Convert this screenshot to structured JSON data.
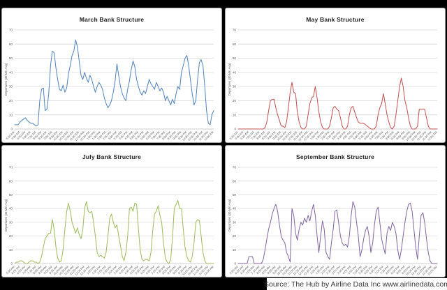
{
  "source": {
    "label": "Source: The Hub by Airline Data Inc www.airlinedata.com"
  },
  "axis": {
    "ylabel": "Departures (30 Min Avg)",
    "yticks": [
      0,
      10,
      20,
      30,
      40,
      50,
      60,
      70
    ],
    "ylim": [
      0,
      70
    ],
    "x_interval_minutes": 10,
    "grid": true,
    "legend": "none",
    "x_labels": [
      "5:30 AM",
      "6:00 AM",
      "6:30 AM",
      "7:00 AM",
      "7:30 AM",
      "8:00 AM",
      "8:30 AM",
      "9:00 AM",
      "9:30 AM",
      "10:00 AM",
      "10:30 AM",
      "11:00 AM",
      "11:30 AM",
      "12:00 PM",
      "12:30 PM",
      "1:00 PM",
      "1:30 PM",
      "2:00 PM",
      "2:30 PM",
      "3:00 PM",
      "3:30 PM",
      "4:00 PM",
      "4:30 PM",
      "5:00 PM",
      "5:30 PM",
      "6:00 PM",
      "6:30 PM",
      "7:00 PM",
      "7:30 PM",
      "8:00 PM",
      "8:30 PM",
      "9:00 PM",
      "9:30 PM",
      "10:00 PM",
      "10:30 PM",
      "11:00 PM",
      "11:30 PM",
      "12:00 AM"
    ]
  },
  "chart_data": [
    {
      "type": "line",
      "title": "March Bank Structure",
      "name": "march",
      "color": "#4F81BD",
      "ylabel": "Departures (30 Min Avg)",
      "ylim": [
        0,
        70
      ],
      "values": [
        3,
        3,
        3,
        5,
        6,
        7,
        8,
        6,
        5,
        4,
        4,
        3,
        2,
        3,
        20,
        28,
        29,
        13,
        14,
        25,
        45,
        55,
        54,
        43,
        35,
        28,
        27,
        31,
        26,
        29,
        39,
        45,
        52,
        55,
        63,
        58,
        48,
        38,
        35,
        40,
        36,
        33,
        38,
        35,
        30,
        26,
        30,
        33,
        31,
        28,
        22,
        18,
        15,
        17,
        20,
        26,
        34,
        46,
        38,
        30,
        25,
        22,
        20,
        28,
        34,
        42,
        48,
        44,
        35,
        30,
        26,
        24,
        27,
        25,
        30,
        35,
        32,
        30,
        28,
        33,
        30,
        27,
        29,
        26,
        20,
        23,
        20,
        17,
        21,
        18,
        25,
        30,
        28,
        40,
        45,
        50,
        52,
        45,
        35,
        25,
        17,
        20,
        35,
        47,
        49,
        45,
        30,
        13,
        4,
        3,
        10,
        13
      ]
    },
    {
      "type": "line",
      "title": "May Bank Structure",
      "name": "may",
      "color": "#C0504D",
      "ylabel": "Departures (30 Min Avg)",
      "ylim": [
        0,
        70
      ],
      "values": [
        0,
        0,
        0,
        0,
        0,
        0,
        0,
        0,
        0,
        0,
        0,
        0,
        0,
        0,
        0,
        1,
        5,
        13,
        20,
        21,
        21,
        15,
        10,
        6,
        2,
        2,
        1,
        5,
        15,
        26,
        33,
        26,
        25,
        12,
        5,
        1,
        0,
        0,
        2,
        10,
        18,
        22,
        23,
        30,
        22,
        12,
        5,
        1,
        0,
        0,
        0,
        2,
        8,
        15,
        16,
        14,
        13,
        8,
        2,
        0,
        0,
        2,
        10,
        15,
        16,
        12,
        8,
        5,
        4,
        4,
        4,
        3,
        2,
        1,
        0,
        0,
        0,
        2,
        10,
        15,
        18,
        25,
        18,
        10,
        5,
        1,
        0,
        2,
        10,
        20,
        30,
        36,
        30,
        20,
        15,
        8,
        2,
        0,
        0,
        0,
        2,
        14,
        14,
        14,
        14,
        8,
        2,
        0,
        0,
        0,
        0,
        0
      ]
    },
    {
      "type": "line",
      "title": "July Bank Structure",
      "name": "july",
      "color": "#9BBB59",
      "ylabel": "Departures (30 Min Avg)",
      "ylim": [
        0,
        70
      ],
      "values": [
        0,
        1,
        1,
        2,
        2,
        1,
        0,
        0,
        1,
        2,
        2,
        1,
        1,
        0,
        1,
        5,
        12,
        18,
        20,
        22,
        22,
        32,
        25,
        12,
        4,
        1,
        2,
        10,
        25,
        38,
        44,
        38,
        30,
        26,
        22,
        26,
        21,
        18,
        25,
        40,
        45,
        38,
        37,
        38,
        30,
        20,
        8,
        5,
        6,
        5,
        4,
        8,
        20,
        33,
        36,
        30,
        26,
        28,
        20,
        13,
        5,
        2,
        8,
        20,
        40,
        41,
        38,
        44,
        43,
        25,
        10,
        3,
        2,
        3,
        3,
        2,
        8,
        24,
        36,
        38,
        42,
        35,
        30,
        15,
        4,
        1,
        0,
        3,
        18,
        40,
        43,
        46,
        40,
        40,
        25,
        12,
        5,
        2,
        1,
        5,
        15,
        30,
        32,
        31,
        20,
        8,
        2,
        0,
        0,
        0,
        0,
        0
      ]
    },
    {
      "type": "line",
      "title": "September Bank Structure",
      "name": "september",
      "color": "#8064A2",
      "ylabel": "Departures (30 Min Avg)",
      "ylim": [
        0,
        70
      ],
      "values": [
        0,
        0,
        0,
        0,
        0,
        0,
        5,
        5,
        5,
        0,
        0,
        0,
        0,
        0,
        3,
        10,
        18,
        25,
        30,
        36,
        40,
        43,
        38,
        28,
        20,
        17,
        15,
        8,
        5,
        1,
        40,
        35,
        22,
        17,
        25,
        30,
        28,
        33,
        30,
        35,
        31,
        38,
        43,
        35,
        20,
        8,
        20,
        31,
        25,
        8,
        5,
        3,
        15,
        25,
        38,
        39,
        30,
        20,
        15,
        13,
        14,
        12,
        20,
        35,
        45,
        41,
        30,
        20,
        5,
        10,
        18,
        24,
        27,
        20,
        8,
        15,
        28,
        38,
        41,
        30,
        18,
        12,
        7,
        22,
        27,
        24,
        30,
        27,
        22,
        10,
        3,
        10,
        20,
        30,
        38,
        43,
        44,
        38,
        25,
        12,
        3,
        20,
        35,
        37,
        30,
        18,
        8,
        2,
        0,
        0,
        0,
        0
      ]
    }
  ]
}
